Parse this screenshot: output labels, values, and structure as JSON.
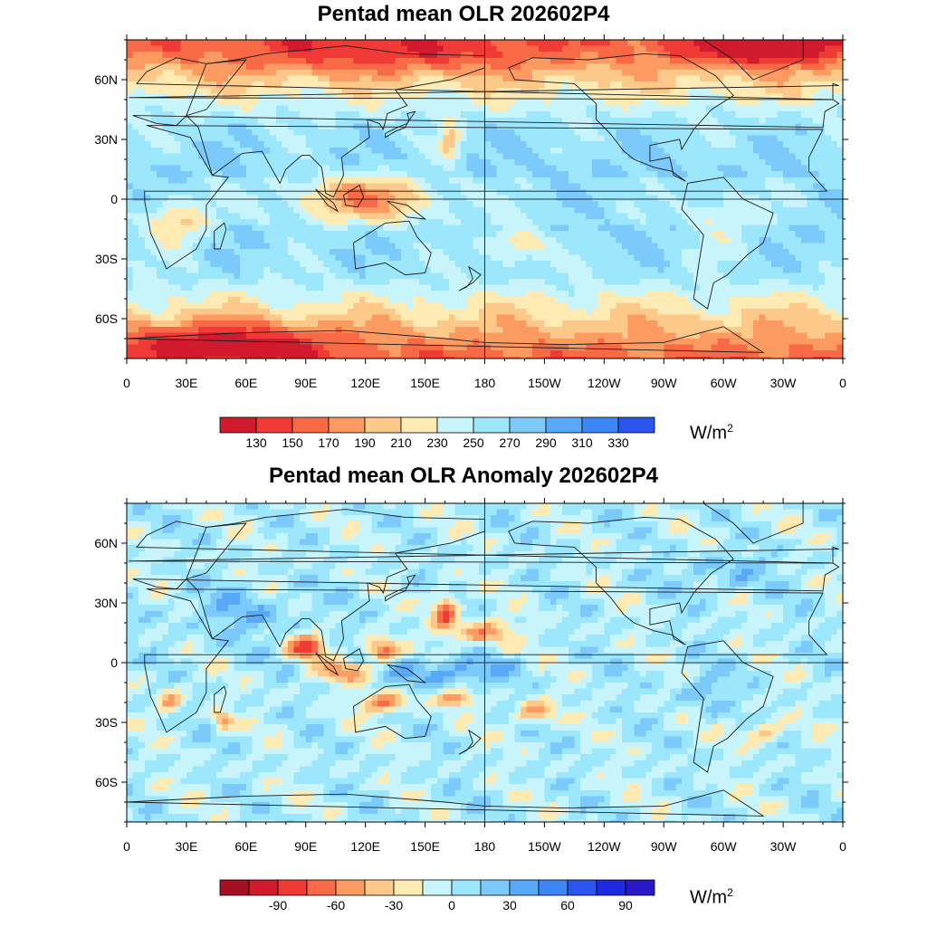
{
  "maps": [
    {
      "id": "olr",
      "title": "Pentad mean OLR 202602P4",
      "lat_ticks": [
        "60N",
        "30N",
        "0",
        "30S",
        "60S"
      ],
      "lon_ticks": [
        "0",
        "30E",
        "60E",
        "90E",
        "120E",
        "150E",
        "180",
        "150W",
        "120W",
        "90W",
        "60W",
        "30W",
        "0"
      ],
      "colorbar": {
        "colors": [
          "#d11a2e",
          "#ef3a35",
          "#f76a45",
          "#fb9b62",
          "#fdc98a",
          "#feebb4",
          "#c7f5fb",
          "#9de7fc",
          "#7ccafb",
          "#58a9f8",
          "#3d86f6",
          "#2a55ef"
        ],
        "labels": [
          "130",
          "150",
          "170",
          "190",
          "210",
          "230",
          "250",
          "270",
          "290",
          "310",
          "330"
        ]
      },
      "units": {
        "base": "W/m",
        "exp": "2"
      }
    },
    {
      "id": "anomaly",
      "title": "Pentad mean OLR Anomaly 202602P4",
      "lat_ticks": [
        "60N",
        "30N",
        "0",
        "30S",
        "60S"
      ],
      "lon_ticks": [
        "0",
        "30E",
        "60E",
        "90E",
        "120E",
        "150E",
        "180",
        "150W",
        "120W",
        "90W",
        "60W",
        "30W",
        "0"
      ],
      "colorbar": {
        "colors": [
          "#a50f22",
          "#d11a2e",
          "#ef3a35",
          "#f76a45",
          "#fb9b62",
          "#fdc98a",
          "#feebb4",
          "#c7f5fb",
          "#9de7fc",
          "#7ccafb",
          "#58a9f8",
          "#3d86f6",
          "#2a55ef",
          "#1f29e0",
          "#2a18c8"
        ],
        "labels": [
          "",
          "-90",
          "",
          "-60",
          "",
          "-30",
          "",
          "0",
          "",
          "30",
          "",
          "60",
          "",
          "90",
          ""
        ]
      },
      "units": {
        "base": "W/m",
        "exp": "2"
      }
    }
  ]
}
